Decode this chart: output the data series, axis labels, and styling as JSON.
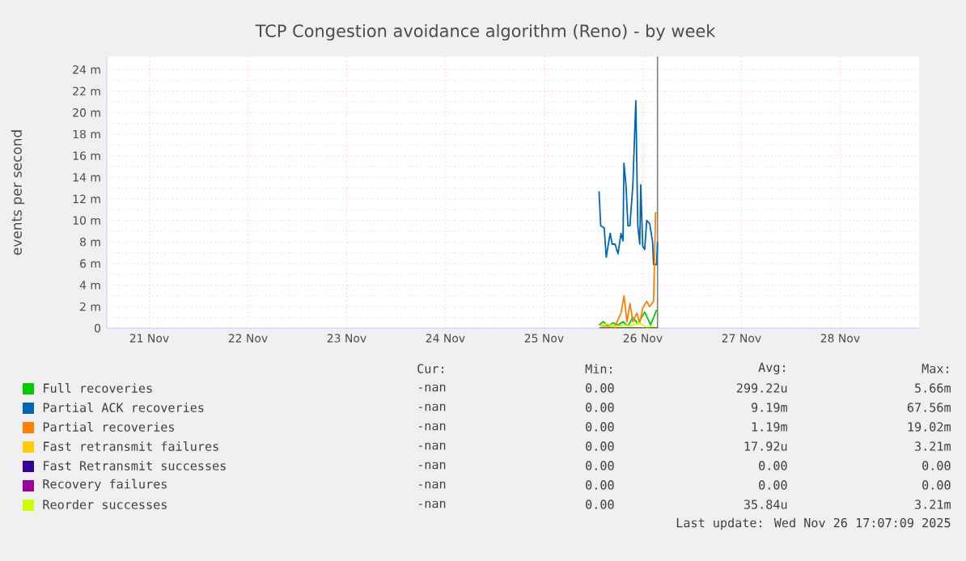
{
  "chart_data": {
    "type": "line",
    "title": "TCP Congestion avoidance algorithm (Reno) - by week",
    "ylabel": "events per second",
    "xlim": [
      "2025-11-21T01:41",
      "2025-11-29T07:12"
    ],
    "ylim": [
      0,
      25.2
    ],
    "xticks": [
      {
        "value": "2025-11-21T12:00",
        "label": "21 Nov"
      },
      {
        "value": "2025-11-22T12:00",
        "label": "22 Nov"
      },
      {
        "value": "2025-11-23T12:00",
        "label": "23 Nov"
      },
      {
        "value": "2025-11-24T12:00",
        "label": "24 Nov"
      },
      {
        "value": "2025-11-25T12:00",
        "label": "25 Nov"
      },
      {
        "value": "2025-11-26T12:00",
        "label": "26 Nov"
      },
      {
        "value": "2025-11-27T12:00",
        "label": "27 Nov"
      },
      {
        "value": "2025-11-28T12:00",
        "label": "28 Nov"
      }
    ],
    "yticks": [
      0,
      {
        "value": 2,
        "label": "2 m"
      },
      {
        "value": 4,
        "label": "4 m"
      },
      {
        "value": 6,
        "label": "6 m"
      },
      {
        "value": 8,
        "label": "8 m"
      },
      {
        "value": 10,
        "label": "10 m"
      },
      {
        "value": 12,
        "label": "12 m"
      },
      {
        "value": 14,
        "label": "14 m"
      },
      {
        "value": 16,
        "label": "16 m"
      },
      {
        "value": 18,
        "label": "18 m"
      },
      {
        "value": 20,
        "label": "20 m"
      },
      {
        "value": 22,
        "label": "22 m"
      },
      {
        "value": 24,
        "label": "24 m"
      }
    ],
    "grid": true,
    "legend": "bottom",
    "marker": "none",
    "line_style": "solid",
    "ref_lines": [
      {
        "axis": "x",
        "value": "2025-11-26T15:36",
        "color": "#808080"
      }
    ],
    "series": [
      {
        "name": "Full recoveries",
        "color": "#00cc00",
        "x": [
          "2025-11-26T01:26",
          "2025-11-26T02:24",
          "2025-11-26T03:36",
          "2025-11-26T04:48",
          "2025-11-26T06:00",
          "2025-11-26T07:12",
          "2025-11-26T08:24",
          "2025-11-26T09:36",
          "2025-11-26T10:48",
          "2025-11-26T12:29",
          "2025-11-26T13:55",
          "2025-11-26T15:22"
        ],
        "values": [
          0.3,
          0.6,
          0.2,
          0.5,
          0.3,
          0.6,
          0.2,
          1.0,
          0.4,
          1.5,
          0.3,
          1.7
        ]
      },
      {
        "name": "Partial ACK recoveries",
        "color": "#0066b3",
        "x": [
          "2025-11-26T01:22",
          "2025-11-26T01:47",
          "2025-11-26T02:38",
          "2025-11-26T03:07",
          "2025-11-26T04:05",
          "2025-11-26T04:34",
          "2025-11-26T05:17",
          "2025-11-26T06:00",
          "2025-11-26T06:43",
          "2025-11-26T07:12",
          "2025-11-26T07:26",
          "2025-11-26T07:55",
          "2025-11-26T08:24",
          "2025-11-26T08:53",
          "2025-11-26T09:36",
          "2025-11-26T10:19",
          "2025-11-26T10:48",
          "2025-11-26T11:17",
          "2025-11-26T11:31",
          "2025-11-26T12:00",
          "2025-11-26T12:29",
          "2025-11-26T12:58",
          "2025-11-26T13:41",
          "2025-11-26T14:24",
          "2025-11-26T14:38",
          "2025-11-26T15:22",
          "2025-11-26T15:36"
        ],
        "values": [
          12.7,
          9.5,
          9.3,
          6.6,
          8.8,
          7.8,
          7.8,
          6.9,
          8.8,
          8.1,
          15.3,
          13.3,
          9.5,
          9.5,
          13.3,
          21.1,
          9.5,
          7.8,
          13.3,
          7.6,
          7.3,
          10.0,
          9.7,
          8.0,
          5.9,
          5.9,
          8.0
        ]
      },
      {
        "name": "Partial recoveries",
        "color": "#ff8000",
        "x": [
          "2025-11-26T01:47",
          "2025-11-26T05:17",
          "2025-11-26T06:43",
          "2025-11-26T07:26",
          "2025-11-26T08:10",
          "2025-11-26T08:53",
          "2025-11-26T09:36",
          "2025-11-26T10:34",
          "2025-11-26T11:17",
          "2025-11-26T12:00",
          "2025-11-26T12:58",
          "2025-11-26T13:41",
          "2025-11-26T14:38",
          "2025-11-26T15:07",
          "2025-11-26T15:36"
        ],
        "values": [
          0.2,
          0.2,
          1.4,
          3.0,
          0.6,
          2.3,
          0.6,
          1.4,
          0.5,
          1.9,
          2.5,
          2.0,
          2.5,
          10.7,
          10.7
        ]
      },
      {
        "name": "Fast retransmit failures",
        "color": "#ffcc00"
      },
      {
        "name": "Fast Retransmit successes",
        "color": "#330099"
      },
      {
        "name": "Recovery failures",
        "color": "#990099",
        "x": [
          "2025-11-26T01:26",
          "2025-11-26T07:12",
          "2025-11-26T15:36"
        ],
        "values": [
          0,
          0,
          0
        ]
      },
      {
        "name": "Reorder successes",
        "color": "#ccff00",
        "x": [
          "2025-11-26T01:26",
          "2025-11-26T03:22",
          "2025-11-26T05:17",
          "2025-11-26T07:12",
          "2025-11-26T09:07",
          "2025-11-26T11:02",
          "2025-11-26T12:58",
          "2025-11-26T14:53"
        ],
        "values": [
          0.2,
          0.4,
          0.1,
          0.3,
          0.2,
          0.5,
          0.1,
          0.2
        ]
      }
    ],
    "annotations": [
      "Cur:",
      "Min:",
      "Avg:",
      "Max:",
      "-nan",
      "0.00",
      "299.22u",
      "5.66m",
      "-nan",
      "0.00",
      "9.19m",
      "67.56m",
      "-nan",
      "0.00",
      "1.19m",
      "19.02m",
      "-nan",
      "0.00",
      "17.92u",
      "3.21m",
      "-nan",
      "0.00",
      "0.00",
      "0.00",
      "-nan",
      "0.00",
      "0.00",
      "0.00",
      "-nan",
      "0.00",
      "35.84u",
      "3.21m",
      "Last update: Wed Nov 26 17:07:09 2025"
    ]
  }
}
